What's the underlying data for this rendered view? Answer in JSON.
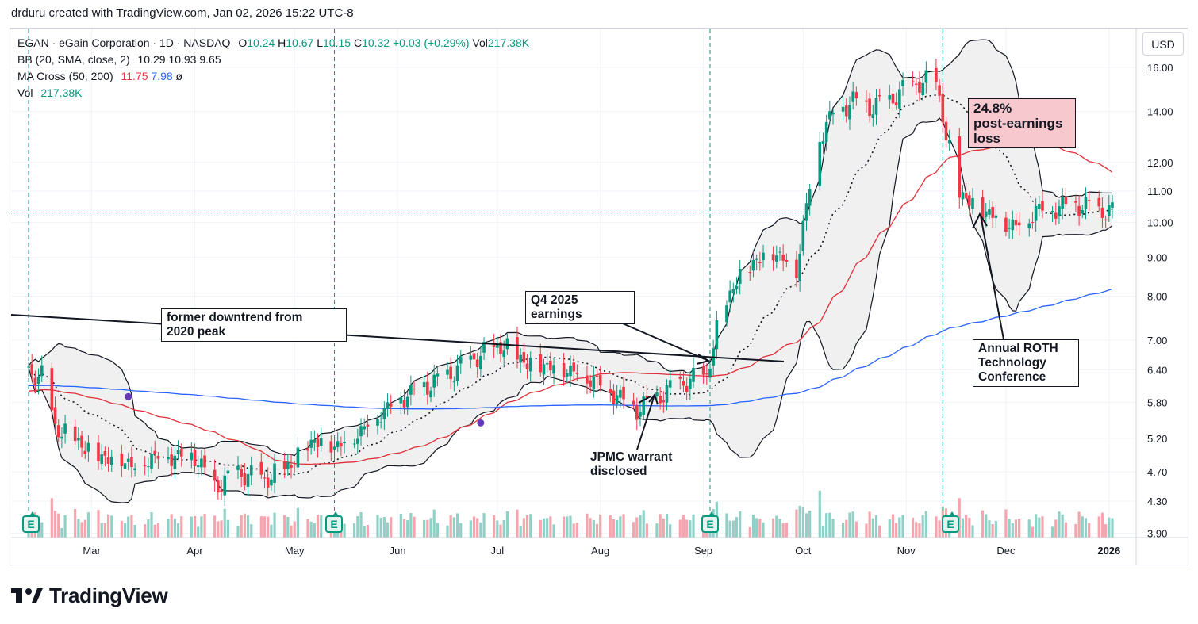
{
  "header": {
    "created_line": "drduru created with TradingView.com, Jan 02, 2026 15:22 UTC-8"
  },
  "legend": {
    "symbol": "EGAN · eGain Corporation · 1D · NASDAQ",
    "o_label": "O",
    "o_value": "10.24",
    "h_label": "H",
    "h_value": "10.67",
    "l_label": "L",
    "l_value": "10.15",
    "c_label": "C",
    "c_value": "10.32",
    "change": "+0.03 (+0.29%)",
    "vol_label": "Vol",
    "vol_value": "217.38K",
    "bb_name": "BB (20, SMA, close, 2)",
    "bb_values": [
      "10.29",
      "10.93",
      "9.65"
    ],
    "ma_name": "MA Cross (50, 200)",
    "ma_values": [
      "11.75",
      "7.98"
    ],
    "ma_extra": "ø",
    "vol_row_label": "Vol",
    "vol_row_value": "217.38K"
  },
  "currency_button": "USD",
  "logo_text": "TradingView",
  "earnings_badge_label": "E",
  "annotations": {
    "downtrend": "former downtrend from\n2020 peak",
    "q4": "Q4 2025\nearnings",
    "jpmc": "JPMC warrant\ndisclosed",
    "loss": "24.8%\npost-earnings\nloss",
    "roth": "Annual ROTH\nTechnology\nConference"
  },
  "colors": {
    "up": "#089981",
    "down": "#f23645",
    "vol_up": "#8fd1c7",
    "vol_down": "#f5a5ad",
    "ma50": "#e0303a",
    "ma200": "#2962ff",
    "bb_fill": "#f0f0f0",
    "bb_line": "#131722",
    "annotation_pink": "#f8c8cf"
  },
  "chart_data": {
    "type": "candlestick",
    "y_scale": "log",
    "ylim": [
      3.85,
      18.0
    ],
    "y_ticks": [
      "16.00",
      "14.00",
      "12.00",
      "11.00",
      "10.00",
      "9.00",
      "8.00",
      "7.00",
      "6.40",
      "5.80",
      "5.20",
      "4.70",
      "4.30",
      "3.90"
    ],
    "x_ticks": [
      "Mar",
      "Apr",
      "May",
      "Jun",
      "Jul",
      "Aug",
      "Sep",
      "Oct",
      "Nov",
      "Dec",
      "2026"
    ],
    "x_range": [
      "2025-02-10",
      "2026-01-02"
    ],
    "last_price": 10.32,
    "earnings_dates": [
      "2025-02-10",
      "2025-05-13",
      "2025-09-03",
      "2025-11-12"
    ],
    "ma_cross_dates": [
      "2025-03-12",
      "2025-06-26"
    ],
    "series_ohlc": [
      [
        "2025-02-10",
        6.35
      ],
      [
        "2025-02-14",
        6.3
      ],
      [
        "2025-02-18",
        5.4
      ],
      [
        "2025-02-24",
        5.2
      ],
      [
        "2025-03-03",
        4.95
      ],
      [
        "2025-03-10",
        4.9
      ],
      [
        "2025-03-14",
        4.8
      ],
      [
        "2025-03-20",
        4.95
      ],
      [
        "2025-03-26",
        4.95
      ],
      [
        "2025-04-01",
        4.95
      ],
      [
        "2025-04-07",
        4.5
      ],
      [
        "2025-04-14",
        4.7
      ],
      [
        "2025-04-22",
        4.6
      ],
      [
        "2025-04-28",
        4.75
      ],
      [
        "2025-05-02",
        4.95
      ],
      [
        "2025-05-07",
        5.2
      ],
      [
        "2025-05-13",
        5.1
      ],
      [
        "2025-05-19",
        5.25
      ],
      [
        "2025-05-26",
        5.6
      ],
      [
        "2025-06-02",
        5.9
      ],
      [
        "2025-06-09",
        6.1
      ],
      [
        "2025-06-16",
        6.3
      ],
      [
        "2025-06-23",
        6.6
      ],
      [
        "2025-06-30",
        6.85
      ],
      [
        "2025-07-03",
        6.9
      ],
      [
        "2025-07-10",
        6.55
      ],
      [
        "2025-07-17",
        6.5
      ],
      [
        "2025-07-24",
        6.4
      ],
      [
        "2025-07-31",
        6.2
      ],
      [
        "2025-08-07",
        5.9
      ],
      [
        "2025-08-12",
        5.7
      ],
      [
        "2025-08-18",
        5.9
      ],
      [
        "2025-08-25",
        6.15
      ],
      [
        "2025-09-02",
        6.3
      ],
      [
        "2025-09-05",
        7.2
      ],
      [
        "2025-09-10",
        8.3
      ],
      [
        "2025-09-16",
        8.9
      ],
      [
        "2025-09-22",
        9.2
      ],
      [
        "2025-09-29",
        8.7
      ],
      [
        "2025-10-06",
        13.0
      ],
      [
        "2025-10-10",
        14.0
      ],
      [
        "2025-10-16",
        14.5
      ],
      [
        "2025-10-22",
        14.2
      ],
      [
        "2025-10-28",
        14.6
      ],
      [
        "2025-11-03",
        15.2
      ],
      [
        "2025-11-10",
        15.4
      ],
      [
        "2025-11-13",
        13.0
      ],
      [
        "2025-11-17",
        11.0
      ],
      [
        "2025-11-21",
        10.6
      ],
      [
        "2025-11-28",
        10.2
      ],
      [
        "2025-12-04",
        9.9
      ],
      [
        "2025-12-10",
        10.4
      ],
      [
        "2025-12-16",
        10.5
      ],
      [
        "2025-12-22",
        10.6
      ],
      [
        "2025-12-29",
        10.4
      ],
      [
        "2026-01-02",
        10.32
      ]
    ]
  }
}
